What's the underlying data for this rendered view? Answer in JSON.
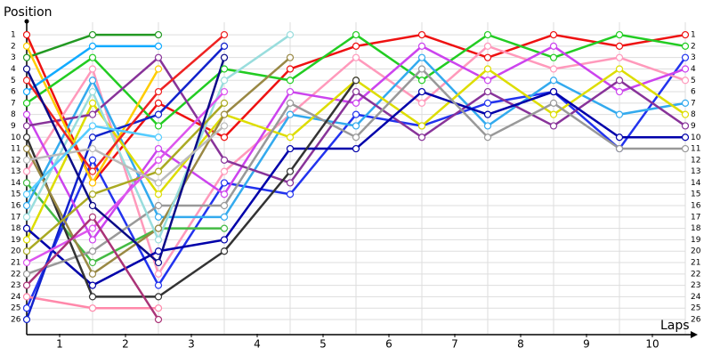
{
  "chart_data": {
    "type": "line",
    "y_axis_label": "Position",
    "x_axis_label": "Laps",
    "x": [
      0,
      1,
      2,
      3,
      4,
      5,
      6,
      7,
      8,
      9,
      10
    ],
    "xlim": [
      0,
      10
    ],
    "xticks": [
      {
        "value": 0.5,
        "label": "1"
      },
      {
        "value": 1.5,
        "label": "2"
      },
      {
        "value": 2.5,
        "label": "3"
      },
      {
        "value": 3.5,
        "label": "4"
      },
      {
        "value": 4.5,
        "label": "5"
      },
      {
        "value": 5.5,
        "label": "6"
      },
      {
        "value": 6.5,
        "label": "7"
      },
      {
        "value": 7.5,
        "label": "8"
      },
      {
        "value": 8.5,
        "label": "9"
      },
      {
        "value": 9.5,
        "label": "10"
      }
    ],
    "ylim": [
      27.25,
      -0.1
    ],
    "yticks": [
      1,
      2,
      3,
      4,
      5,
      6,
      7,
      8,
      9,
      10,
      11,
      12,
      13,
      14,
      15,
      16,
      17,
      18,
      19,
      20,
      21,
      22,
      23,
      24,
      25,
      26
    ],
    "grid": true,
    "series": [
      {
        "color": "#ee1111",
        "values": [
          1,
          14,
          7,
          10,
          4,
          2,
          1,
          3,
          1,
          2,
          1
        ]
      },
      {
        "color": "#229922",
        "values": [
          3,
          1,
          1,
          null,
          null,
          null,
          null,
          null,
          null,
          null,
          null
        ]
      },
      {
        "color": "#22cc22",
        "values": [
          7,
          3,
          9,
          4,
          5,
          1,
          5,
          1,
          3,
          1,
          2
        ]
      },
      {
        "color": "#2233ee",
        "values": [
          25,
          12,
          23,
          14,
          15,
          8,
          9,
          7,
          6,
          11,
          3
        ]
      },
      {
        "color": "#ff99bb",
        "values": [
          13,
          4,
          22,
          13,
          8,
          3,
          7,
          2,
          4,
          3,
          5
        ]
      },
      {
        "color": "#cc44ee",
        "values": [
          8,
          19,
          11,
          15,
          6,
          7,
          2,
          5,
          2,
          6,
          4
        ]
      },
      {
        "color": "#44bb44",
        "values": [
          14,
          21,
          18,
          18,
          null,
          null,
          null,
          null,
          null,
          null,
          null
        ]
      },
      {
        "color": "#33aaee",
        "values": [
          16,
          5,
          17,
          17,
          8,
          9,
          3,
          9,
          5,
          8,
          7
        ]
      },
      {
        "color": "#dddd00",
        "values": [
          19,
          7,
          15,
          8,
          10,
          5,
          9,
          4,
          8,
          4,
          8
        ]
      },
      {
        "color": "#883399",
        "values": [
          9,
          8,
          3,
          12,
          14,
          6,
          10,
          6,
          9,
          5,
          9
        ]
      },
      {
        "color": "#0000aa",
        "values": [
          18,
          23,
          20,
          19,
          11,
          11,
          6,
          8,
          6,
          10,
          10
        ]
      },
      {
        "color": "#999999",
        "values": [
          22,
          20,
          16,
          16,
          7,
          10,
          4,
          10,
          7,
          11,
          11
        ]
      },
      {
        "color": "#333333",
        "values": [
          10,
          24,
          24,
          20,
          13,
          5,
          null,
          null,
          null,
          null,
          null
        ]
      },
      {
        "color": "#ff88aa",
        "values": [
          24,
          25,
          25,
          null,
          null,
          null,
          null,
          null,
          null,
          null,
          null
        ]
      },
      {
        "color": "#998844",
        "values": [
          11,
          22,
          18,
          8,
          3,
          null,
          null,
          null,
          null,
          null,
          null
        ]
      },
      {
        "color": "#99dddd",
        "values": [
          17,
          6,
          19,
          5,
          1,
          null,
          null,
          null,
          null,
          null,
          null
        ]
      },
      {
        "color": "#ffcc00",
        "values": [
          2,
          14,
          4,
          null,
          null,
          null,
          null,
          null,
          null,
          null,
          null
        ]
      },
      {
        "color": "#1122cc",
        "values": [
          26,
          10,
          8,
          2,
          null,
          null,
          null,
          null,
          null,
          null,
          null
        ]
      },
      {
        "color": "#11aaff",
        "values": [
          6,
          2,
          2,
          null,
          null,
          null,
          null,
          null,
          null,
          null,
          null
        ]
      },
      {
        "color": "#ee2222",
        "values": [
          5,
          13,
          6,
          1,
          null,
          null,
          null,
          null,
          null,
          null,
          null
        ]
      },
      {
        "color": "#aaaa22",
        "values": [
          20,
          15,
          13,
          7,
          null,
          null,
          null,
          null,
          null,
          null,
          null
        ]
      },
      {
        "color": "#dd55ee",
        "values": [
          21,
          18,
          12,
          6,
          null,
          null,
          null,
          null,
          null,
          null,
          null
        ]
      },
      {
        "color": "#0b0b88",
        "values": [
          4,
          16,
          21,
          3,
          null,
          null,
          null,
          null,
          null,
          null,
          null
        ]
      },
      {
        "color": "#bbbbbb",
        "values": [
          12,
          11,
          14,
          9,
          null,
          null,
          null,
          null,
          null,
          null,
          null
        ]
      },
      {
        "color": "#55ccff",
        "values": [
          15,
          9,
          10,
          null,
          null,
          null,
          null,
          null,
          null,
          null,
          null
        ]
      },
      {
        "color": "#aa3377",
        "values": [
          23,
          17,
          26,
          null,
          null,
          null,
          null,
          null,
          null,
          null,
          null
        ]
      }
    ]
  }
}
